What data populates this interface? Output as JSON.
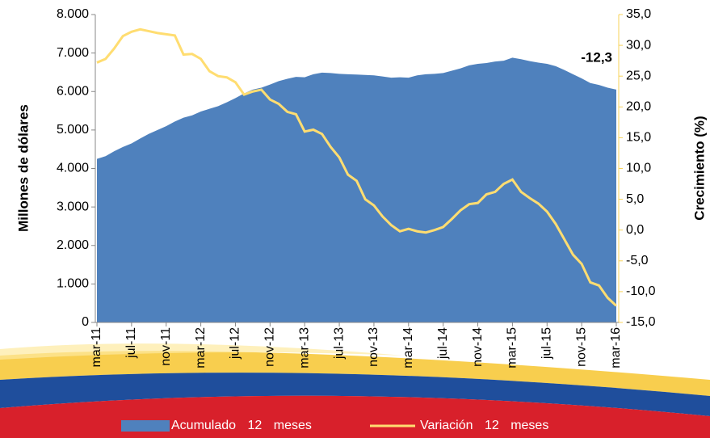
{
  "chart_data": {
    "type": "area-line",
    "y_label": "Millones de dólares",
    "y2_label": "Crecimiento (%)",
    "annotation": {
      "text": "-12,3",
      "value": -12.3
    },
    "categories": [
      "mar-11",
      null,
      null,
      null,
      "jul-11",
      null,
      null,
      null,
      "nov-11",
      null,
      null,
      null,
      "mar-12",
      null,
      null,
      null,
      "jul-12",
      null,
      null,
      null,
      "nov-12",
      null,
      null,
      null,
      "mar-13",
      null,
      null,
      null,
      "jul-13",
      null,
      null,
      null,
      "nov-13",
      null,
      null,
      null,
      "mar-14",
      null,
      null,
      null,
      "jul-14",
      null,
      null,
      null,
      "nov-14",
      null,
      null,
      null,
      "mar-15",
      null,
      null,
      null,
      "jul-15",
      null,
      null,
      null,
      "nov-15",
      null,
      null,
      null,
      "mar-16"
    ],
    "series": [
      {
        "name": "Acumulado 12 meses",
        "color": "#4f81bd",
        "kind": "area",
        "axis": "y",
        "values": [
          4250,
          4320,
          4450,
          4560,
          4650,
          4780,
          4900,
          5000,
          5100,
          5220,
          5320,
          5380,
          5480,
          5550,
          5620,
          5720,
          5830,
          5950,
          6050,
          6100,
          6180,
          6270,
          6330,
          6380,
          6370,
          6450,
          6490,
          6480,
          6460,
          6450,
          6440,
          6430,
          6420,
          6390,
          6360,
          6370,
          6360,
          6420,
          6450,
          6460,
          6480,
          6540,
          6600,
          6680,
          6720,
          6740,
          6780,
          6800,
          6880,
          6840,
          6790,
          6750,
          6720,
          6660,
          6560,
          6450,
          6340,
          6220,
          6170,
          6100,
          6050
        ]
      },
      {
        "name": "Variación 12 meses",
        "color": "#ffdd71",
        "kind": "line",
        "axis": "y2",
        "values": [
          27.2,
          27.8,
          29.5,
          31.5,
          32.2,
          32.6,
          32.3,
          32.0,
          31.8,
          31.6,
          28.5,
          28.6,
          27.8,
          25.8,
          25.0,
          24.8,
          24.0,
          22.0,
          22.5,
          22.8,
          21.2,
          20.5,
          19.2,
          18.8,
          16.0,
          16.3,
          15.6,
          13.5,
          11.8,
          9.0,
          8.0,
          5.0,
          4.0,
          2.2,
          0.8,
          -0.2,
          0.2,
          -0.2,
          -0.4,
          0.0,
          0.5,
          1.8,
          3.2,
          4.2,
          4.4,
          5.8,
          6.2,
          7.5,
          8.2,
          6.2,
          5.2,
          4.3,
          3.0,
          1.0,
          -1.5,
          -4.0,
          -5.5,
          -8.5,
          -9.0,
          -11.0,
          -12.3
        ]
      }
    ],
    "ylim": [
      0,
      8000
    ],
    "yticks": [
      0,
      {
        "value": 1000,
        "label": "1.000"
      },
      {
        "value": 2000,
        "label": "2.000"
      },
      {
        "value": 3000,
        "label": "3.000"
      },
      {
        "value": 4000,
        "label": "4.000"
      },
      {
        "value": 5000,
        "label": "5.000"
      },
      {
        "value": 6000,
        "label": "6.000"
      },
      {
        "value": 7000,
        "label": "7.000"
      },
      {
        "value": 8000,
        "label": "8.000"
      }
    ],
    "y2lim": [
      -15,
      35
    ],
    "y2ticks": [
      {
        "value": -15,
        "label": "-15,0"
      },
      {
        "value": -10,
        "label": "-10,0"
      },
      {
        "value": -5,
        "label": "-5,0"
      },
      {
        "value": 0,
        "label": "0,0"
      },
      {
        "value": 5,
        "label": "5,0"
      },
      {
        "value": 10,
        "label": "10,0"
      },
      {
        "value": 15,
        "label": "15,0"
      },
      {
        "value": 20,
        "label": "20,0"
      },
      {
        "value": 25,
        "label": "25,0"
      },
      {
        "value": 30,
        "label": "30,0"
      },
      {
        "value": 35,
        "label": "35,0"
      }
    ],
    "legend": "bottom"
  }
}
